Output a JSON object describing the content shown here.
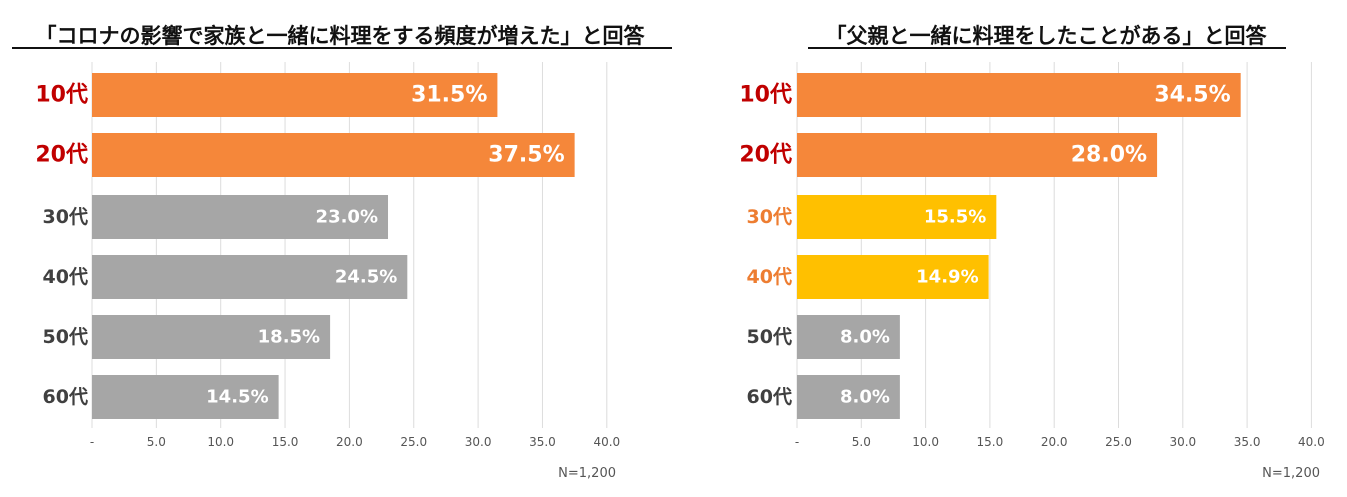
{
  "chart_data": [
    {
      "type": "bar",
      "orientation": "horizontal",
      "title": "「コロナの影響で家族と一緒に料理をする頻度が増えた」と回答",
      "categories": [
        "10代",
        "20代",
        "30代",
        "40代",
        "50代",
        "60代"
      ],
      "values": [
        31.5,
        37.5,
        23.0,
        24.5,
        18.5,
        14.5
      ],
      "value_labels": [
        "31.5%",
        "37.5%",
        "23.0%",
        "24.5%",
        "18.5%",
        "14.5%"
      ],
      "bar_colors": [
        "#F5873A",
        "#F5873A",
        "#A6A6A6",
        "#A6A6A6",
        "#A6A6A6",
        "#A6A6A6"
      ],
      "category_colors": [
        "#C00000",
        "#C00000",
        "#404040",
        "#404040",
        "#404040",
        "#404040"
      ],
      "xlim": [
        0,
        40
      ],
      "xticks": [
        "-",
        "5.0",
        "10.0",
        "15.0",
        "20.0",
        "25.0",
        "30.0",
        "35.0",
        "40.0"
      ],
      "grid": "vertical",
      "note": "N=1,200"
    },
    {
      "type": "bar",
      "orientation": "horizontal",
      "title": "「父親と一緒に料理をしたことがある」と回答",
      "categories": [
        "10代",
        "20代",
        "30代",
        "40代",
        "50代",
        "60代"
      ],
      "values": [
        34.5,
        28.0,
        15.5,
        14.9,
        8.0,
        8.0
      ],
      "value_labels": [
        "34.5%",
        "28.0%",
        "15.5%",
        "14.9%",
        "8.0%",
        "8.0%"
      ],
      "bar_colors": [
        "#F5873A",
        "#F5873A",
        "#FFC000",
        "#FFC000",
        "#A6A6A6",
        "#A6A6A6"
      ],
      "category_colors": [
        "#C00000",
        "#C00000",
        "#ED7D31",
        "#ED7D31",
        "#404040",
        "#404040"
      ],
      "xlim": [
        0,
        40
      ],
      "xticks": [
        "-",
        "5.0",
        "10.0",
        "15.0",
        "20.0",
        "25.0",
        "30.0",
        "35.0",
        "40.0"
      ],
      "grid": "vertical",
      "note": "N=1,200"
    }
  ]
}
